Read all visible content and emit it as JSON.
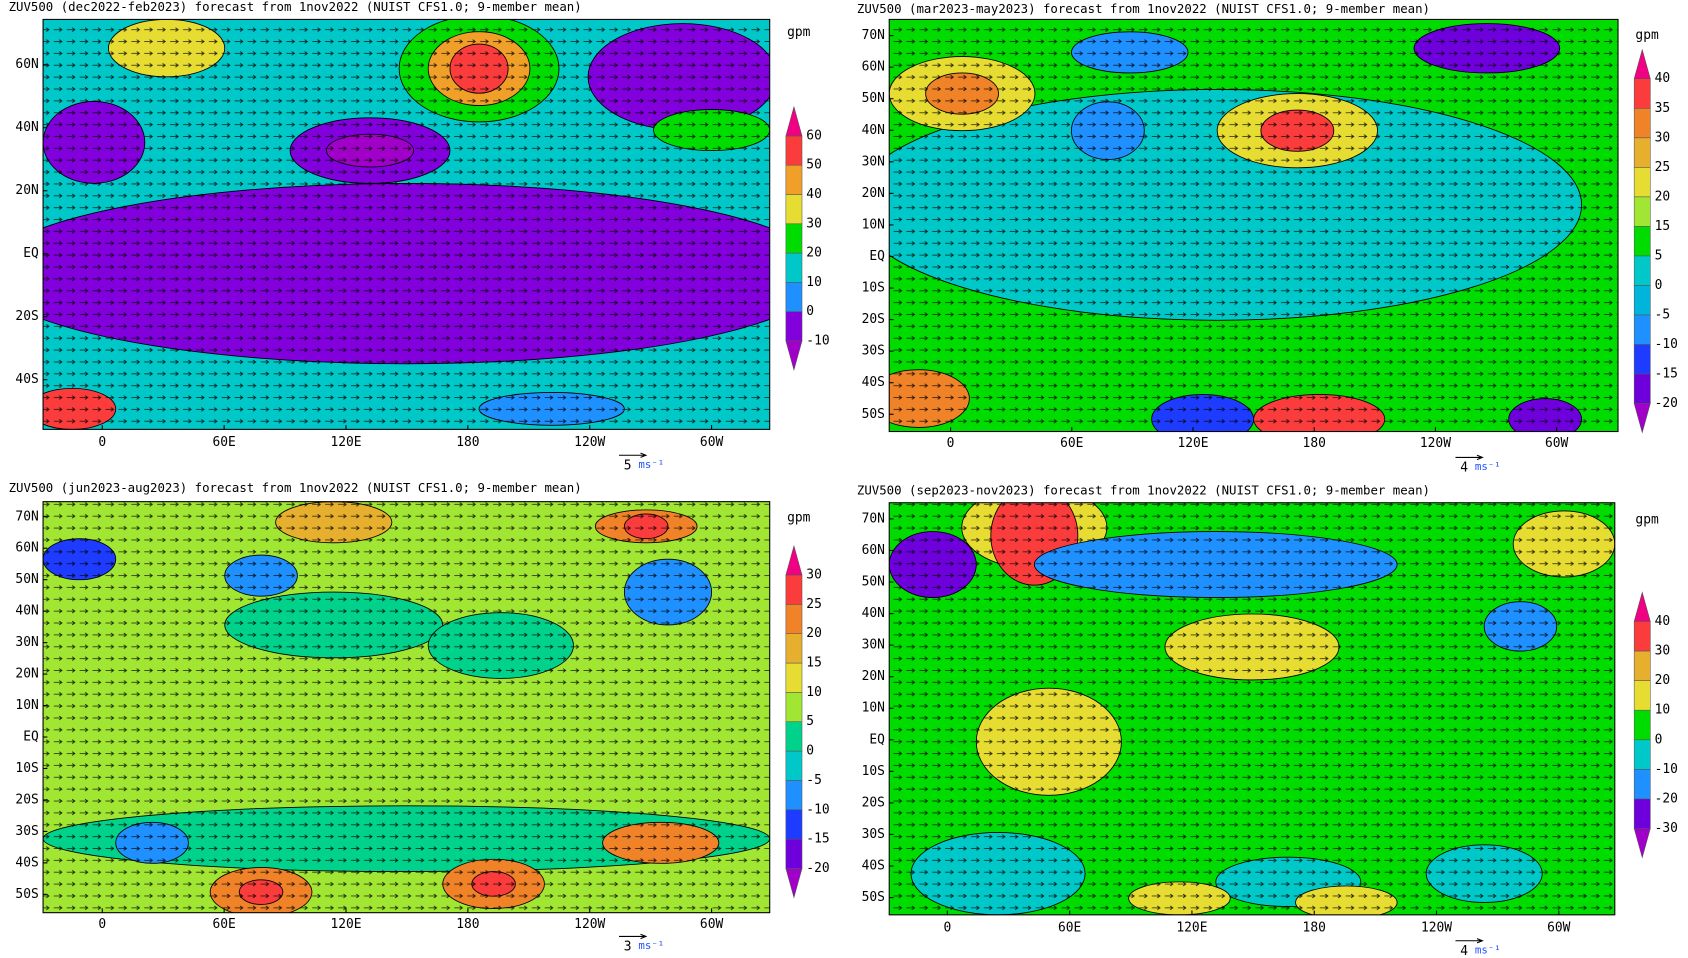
{
  "panels": [
    {
      "title": "ZUV500 (dec2022-feb2023) forecast from 1nov2022 (NUIST CFS1.0; 9-member mean)",
      "units": "gpm",
      "lat_labels": [
        "60N",
        "40N",
        "20N",
        "EQ",
        "20S",
        "40S"
      ],
      "lon_labels": [
        "0",
        "60E",
        "120E",
        "180",
        "120W",
        "60W"
      ],
      "levels": [
        -10,
        0,
        10,
        20,
        30,
        40,
        50,
        60
      ],
      "colors": [
        "#a000c8",
        "#8200dc",
        "#1e90ff",
        "#00c8c8",
        "#00dc00",
        "#e6dc32",
        "#f0a028",
        "#fa3c3c",
        "#f00082"
      ],
      "vector_scale": 5,
      "vector_unit": "ms⁻¹"
    },
    {
      "title": "ZUV500 (mar2023-may2023) forecast from 1nov2022 (NUIST CFS1.0; 9-member mean)",
      "units": "gpm",
      "lat_labels": [
        "70N",
        "60N",
        "50N",
        "40N",
        "30N",
        "20N",
        "10N",
        "EQ",
        "10S",
        "20S",
        "30S",
        "40S",
        "50S"
      ],
      "lon_labels": [
        "0",
        "60E",
        "120E",
        "180",
        "120W",
        "60W"
      ],
      "levels": [
        -20,
        -15,
        -10,
        -5,
        0,
        5,
        15,
        20,
        25,
        30,
        35,
        40
      ],
      "colors": [
        "#a000c8",
        "#6e00dc",
        "#1e3cff",
        "#1e90ff",
        "#00b4dc",
        "#00c8c8",
        "#00dc00",
        "#a0e632",
        "#e6dc32",
        "#e6af2d",
        "#f08228",
        "#fa3c3c",
        "#f00082"
      ],
      "vector_scale": 4,
      "vector_unit": "ms⁻¹"
    },
    {
      "title": "ZUV500 (jun2023-aug2023) forecast from 1nov2022 (NUIST CFS1.0; 9-member mean)",
      "units": "gpm",
      "lat_labels": [
        "70N",
        "60N",
        "50N",
        "40N",
        "30N",
        "20N",
        "10N",
        "EQ",
        "10S",
        "20S",
        "30S",
        "40S",
        "50S"
      ],
      "lon_labels": [
        "0",
        "60E",
        "120E",
        "180",
        "120W",
        "60W"
      ],
      "levels": [
        -20,
        -15,
        -10,
        -5,
        0,
        5,
        10,
        15,
        20,
        25,
        30
      ],
      "colors": [
        "#a000c8",
        "#6e00dc",
        "#1e3cff",
        "#1e90ff",
        "#00c8c8",
        "#00d28c",
        "#a0e632",
        "#e6dc32",
        "#e6af2d",
        "#f08228",
        "#fa3c3c",
        "#f00082"
      ],
      "vector_scale": 3,
      "vector_unit": "ms⁻¹"
    },
    {
      "title": "ZUV500 (sep2023-nov2023) forecast from 1nov2022 (NUIST CFS1.0; 9-member mean)",
      "units": "gpm",
      "lat_labels": [
        "70N",
        "60N",
        "50N",
        "40N",
        "30N",
        "20N",
        "10N",
        "EQ",
        "10S",
        "20S",
        "30S",
        "40S",
        "50S"
      ],
      "lon_labels": [
        "0",
        "60E",
        "120E",
        "180",
        "120W",
        "60W"
      ],
      "levels": [
        -30,
        -20,
        -10,
        0,
        10,
        20,
        30,
        40
      ],
      "colors": [
        "#a000c8",
        "#6e00dc",
        "#1e90ff",
        "#00c8c8",
        "#00dc00",
        "#e6dc32",
        "#e6af2d",
        "#fa3c3c",
        "#f00082"
      ],
      "vector_scale": 4,
      "vector_unit": "ms⁻¹"
    }
  ]
}
